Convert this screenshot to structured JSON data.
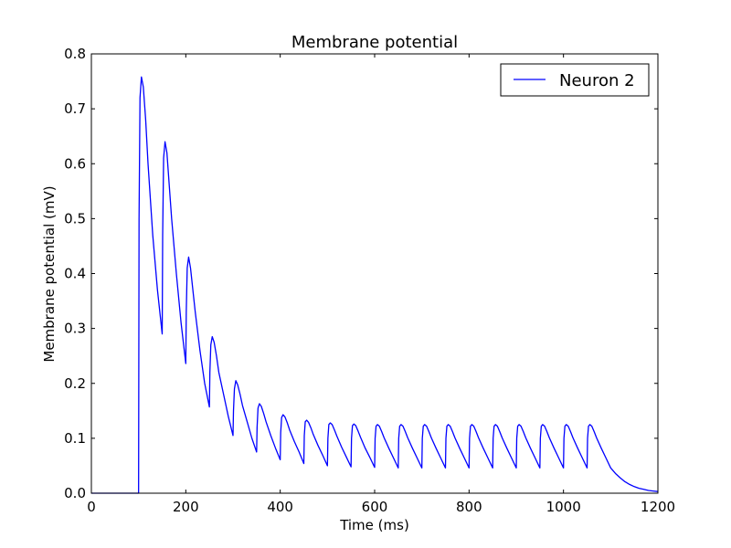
{
  "chart_data": {
    "type": "line",
    "title": "Membrane potential",
    "xlabel": "Time (ms)",
    "ylabel": "Membrane potential (mV)",
    "xlim": [
      0,
      1200
    ],
    "ylim": [
      0,
      0.8
    ],
    "xticks": [
      0,
      200,
      400,
      600,
      800,
      1000,
      1200
    ],
    "yticks": [
      0.0,
      0.1,
      0.2,
      0.3,
      0.4,
      0.5,
      0.6,
      0.7,
      0.8
    ],
    "ytick_labels": [
      "0.0",
      "0.1",
      "0.2",
      "0.3",
      "0.4",
      "0.5",
      "0.6",
      "0.7",
      "0.8"
    ],
    "grid": false,
    "legend": {
      "position": "top-right"
    },
    "series": [
      {
        "name": "Neuron 2",
        "color": "#0000ff",
        "x": [
          0,
          100,
          101,
          103,
          106,
          110,
          115,
          120,
          130,
          140,
          150,
          151,
          153,
          156,
          160,
          165,
          170,
          180,
          190,
          200,
          201,
          203,
          206,
          210,
          215,
          220,
          230,
          240,
          250,
          251,
          253,
          256,
          260,
          265,
          270,
          280,
          290,
          300,
          301,
          303,
          306,
          310,
          315,
          320,
          330,
          340,
          350,
          351,
          353,
          356,
          360,
          365,
          370,
          380,
          390,
          400,
          401,
          403,
          406,
          410,
          415,
          420,
          430,
          440,
          450,
          451,
          453,
          456,
          460,
          465,
          470,
          480,
          490,
          500,
          501,
          503,
          506,
          510,
          515,
          520,
          530,
          540,
          550,
          551,
          553,
          556,
          560,
          565,
          570,
          580,
          590,
          600,
          601,
          603,
          606,
          610,
          615,
          620,
          630,
          640,
          650,
          651,
          653,
          656,
          660,
          665,
          670,
          680,
          690,
          700,
          701,
          703,
          706,
          710,
          715,
          720,
          730,
          740,
          750,
          751,
          753,
          756,
          760,
          765,
          770,
          780,
          790,
          800,
          801,
          803,
          806,
          810,
          815,
          820,
          830,
          840,
          850,
          851,
          853,
          856,
          860,
          865,
          870,
          880,
          890,
          900,
          901,
          903,
          906,
          910,
          915,
          920,
          930,
          940,
          950,
          951,
          953,
          956,
          960,
          965,
          970,
          980,
          990,
          1000,
          1001,
          1003,
          1006,
          1010,
          1015,
          1020,
          1030,
          1040,
          1050,
          1051,
          1053,
          1056,
          1060,
          1065,
          1070,
          1080,
          1090,
          1100,
          1110,
          1120,
          1130,
          1140,
          1150,
          1160,
          1170,
          1180,
          1190,
          1200
        ],
        "y": [
          0,
          0,
          0.5,
          0.72,
          0.758,
          0.74,
          0.68,
          0.6,
          0.47,
          0.37,
          0.29,
          0.47,
          0.61,
          0.64,
          0.62,
          0.56,
          0.5,
          0.4,
          0.31,
          0.236,
          0.33,
          0.41,
          0.43,
          0.41,
          0.37,
          0.33,
          0.26,
          0.2,
          0.157,
          0.22,
          0.27,
          0.285,
          0.275,
          0.25,
          0.22,
          0.18,
          0.14,
          0.105,
          0.15,
          0.19,
          0.205,
          0.197,
          0.18,
          0.16,
          0.13,
          0.1,
          0.075,
          0.12,
          0.155,
          0.163,
          0.158,
          0.145,
          0.13,
          0.105,
          0.082,
          0.061,
          0.11,
          0.138,
          0.143,
          0.139,
          0.128,
          0.115,
          0.094,
          0.075,
          0.054,
          0.105,
          0.13,
          0.133,
          0.129,
          0.119,
          0.107,
          0.087,
          0.069,
          0.05,
          0.1,
          0.125,
          0.128,
          0.125,
          0.115,
          0.104,
          0.084,
          0.066,
          0.048,
          0.1,
          0.123,
          0.126,
          0.123,
          0.113,
          0.102,
          0.082,
          0.065,
          0.047,
          0.1,
          0.122,
          0.125,
          0.122,
          0.112,
          0.101,
          0.082,
          0.064,
          0.046,
          0.1,
          0.122,
          0.125,
          0.122,
          0.112,
          0.101,
          0.082,
          0.064,
          0.046,
          0.1,
          0.122,
          0.125,
          0.122,
          0.112,
          0.101,
          0.082,
          0.064,
          0.046,
          0.1,
          0.122,
          0.125,
          0.122,
          0.112,
          0.101,
          0.082,
          0.064,
          0.046,
          0.1,
          0.122,
          0.125,
          0.122,
          0.112,
          0.101,
          0.082,
          0.064,
          0.046,
          0.1,
          0.122,
          0.125,
          0.122,
          0.112,
          0.101,
          0.082,
          0.064,
          0.046,
          0.1,
          0.122,
          0.125,
          0.122,
          0.112,
          0.101,
          0.082,
          0.064,
          0.046,
          0.1,
          0.122,
          0.125,
          0.122,
          0.112,
          0.101,
          0.082,
          0.064,
          0.046,
          0.1,
          0.122,
          0.125,
          0.122,
          0.112,
          0.101,
          0.082,
          0.064,
          0.046,
          0.1,
          0.122,
          0.125,
          0.122,
          0.112,
          0.101,
          0.082,
          0.064,
          0.046,
          0.036,
          0.028,
          0.021,
          0.016,
          0.012,
          0.009,
          0.007,
          0.005,
          0.004,
          0.003
        ]
      }
    ]
  }
}
